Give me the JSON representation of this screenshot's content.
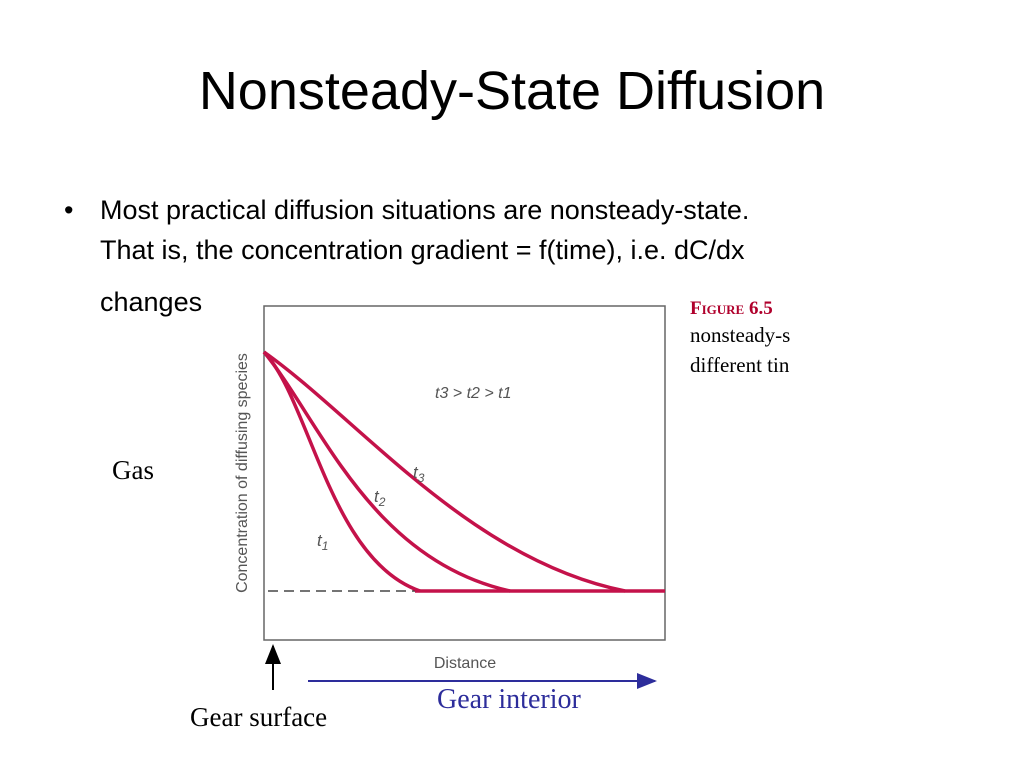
{
  "slide": {
    "title": "Nonsteady-State Diffusion",
    "bullet": {
      "marker": "•",
      "lines": [
        "Most practical diffusion situations are nonsteady-state.",
        "That is, the concentration gradient = f(time), i.e. dC/dx",
        "changes"
      ]
    }
  },
  "figure": {
    "label": "Figure 6.5",
    "caption_lines": [
      "nonsteady-s",
      "different tin"
    ],
    "ylabel": "Concentration of diffusing species",
    "xlabel": "Distance",
    "relation": "t3 > t2 > t1",
    "curves": [
      {
        "name": "t1",
        "sub": "1"
      },
      {
        "name": "t2",
        "sub": "2"
      },
      {
        "name": "t3",
        "sub": "3"
      }
    ],
    "curve_color": "#c4124a"
  },
  "annotations": {
    "gas": "Gas",
    "gear_surface": "Gear surface",
    "gear_interior": "Gear interior",
    "interior_arrow_color": "#2d2d9b"
  }
}
